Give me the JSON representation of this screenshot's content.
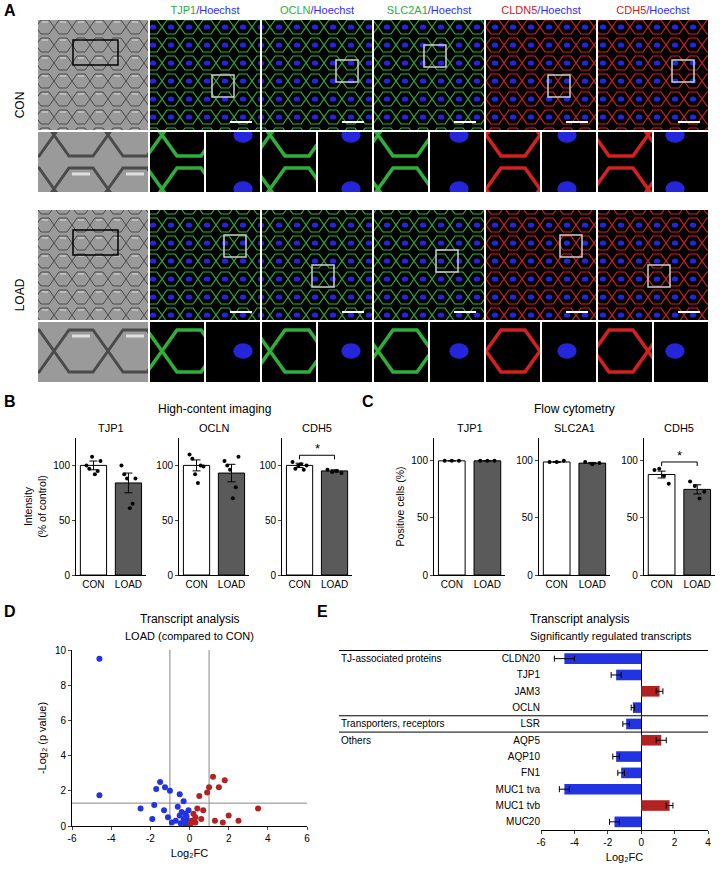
{
  "image_panel": {
    "letter": "A",
    "rows": [
      "CON",
      "LOAD"
    ],
    "nuclear_color": "#2b2bff",
    "columns": [
      {
        "type": "brightfield"
      },
      {
        "type": "fluorescence",
        "label": "TJP1/Hoechst",
        "color": "#2fae3a"
      },
      {
        "type": "fluorescence",
        "label": "OCLN/Hoechst",
        "color": "#2fae3a"
      },
      {
        "type": "fluorescence",
        "label": "SLC2A1/Hoechst",
        "color": "#2fae3a"
      },
      {
        "type": "fluorescence",
        "label": "CLDN5/Hoechst",
        "color": "#d42020"
      },
      {
        "type": "fluorescence",
        "label": "CDH5/Hoechst",
        "color": "#d42020"
      }
    ]
  },
  "chart_data": [
    {
      "letter": "B",
      "type": "bar",
      "title": "High-content imaging",
      "ylabel": [
        "Intensity",
        "(% of control)"
      ],
      "categories": [
        "CON",
        "LOAD"
      ],
      "colors": [
        "#ffffff",
        "#5a5a5a"
      ],
      "ylim": [
        0,
        125
      ],
      "yticks": [
        0,
        50,
        100
      ],
      "subplots": [
        {
          "title": "TJP1",
          "values": [
            100,
            84
          ],
          "errors": [
            4,
            9
          ],
          "points": [
            [
              100,
              97,
              108,
              92,
              95,
              104
            ],
            [
              100,
              92,
              88,
              61,
              65,
              88
            ]
          ]
        },
        {
          "title": "OCLN",
          "values": [
            100,
            93
          ],
          "errors": [
            5,
            8
          ],
          "points": [
            [
              110,
              106,
              92,
              84,
              100,
              99
            ],
            [
              104,
              100,
              96,
              70,
              80,
              108
            ]
          ]
        },
        {
          "title": "CDH5",
          "values": [
            100,
            95
          ],
          "errors": [
            2,
            1
          ],
          "points": [
            [
              103,
              97,
              100,
              101,
              96,
              100
            ],
            [
              96,
              94,
              95,
              93
            ]
          ],
          "significance": "*"
        }
      ]
    },
    {
      "letter": "C",
      "type": "bar",
      "title": "Flow cytometry",
      "ylabel": [
        "Positive cells (%)"
      ],
      "categories": [
        "CON",
        "LOAD"
      ],
      "colors": [
        "#ffffff",
        "#5a5a5a"
      ],
      "ylim": [
        0,
        120
      ],
      "yticks": [
        0,
        50,
        100
      ],
      "subplots": [
        {
          "title": "TJP1",
          "values": [
            100,
            100
          ],
          "errors": [
            0,
            0
          ],
          "points": [
            [
              100,
              100,
              100
            ],
            [
              100,
              100,
              100
            ]
          ]
        },
        {
          "title": "SLC2A1",
          "values": [
            99,
            98
          ],
          "errors": [
            0.3,
            0.6
          ],
          "points": [
            [
              99,
              99,
              100
            ],
            [
              99,
              97,
              98
            ]
          ]
        },
        {
          "title": "CDH5",
          "values": [
            88,
            75
          ],
          "errors": [
            3,
            4
          ],
          "points": [
            [
              92,
              93,
              87,
              80
            ],
            [
              82,
              78,
              67,
              73
            ]
          ],
          "significance": "*"
        }
      ]
    },
    {
      "letter": "D",
      "type": "scatter",
      "title": "Transcript analysis",
      "subtitle": "LOAD (compared to CON)",
      "xlabel": "Log₂FC",
      "ylabel": "-Log₂ (p value)",
      "xlim": [
        -6,
        6
      ],
      "xticks": [
        -6,
        -4,
        -2,
        0,
        2,
        4,
        6
      ],
      "ylim": [
        0,
        10
      ],
      "yticks": [
        0,
        2,
        4,
        6,
        8,
        10
      ],
      "vlines": [
        -1,
        1
      ],
      "hlines": [
        1.3
      ],
      "series": [
        {
          "color": "#2233e0",
          "x": [
            -4.6,
            -4.6,
            -1.5,
            -1.25,
            -1.7,
            -1.0,
            -0.5,
            -0.3,
            -1.8,
            -2.5,
            -1.3,
            -1.1,
            -0.7,
            -0.4,
            -0.5,
            -0.2,
            -0.3,
            -0.1,
            -0.6,
            -0.9,
            -0.2,
            -1.9,
            -0.15,
            -0.45,
            -0.05
          ],
          "y": [
            9.5,
            1.75,
            2.5,
            2.2,
            2.1,
            2.0,
            1.8,
            1.4,
            1.2,
            1.0,
            0.9,
            0.5,
            0.3,
            0.8,
            0.6,
            0.7,
            0.4,
            0.3,
            1.1,
            0.2,
            0.1,
            0.4,
            0.55,
            0.15,
            0.9
          ]
        },
        {
          "color": "#b32222",
          "x": [
            1.2,
            1.8,
            1.0,
            1.5,
            0.9,
            3.5,
            0.5,
            0.3,
            0.7,
            2.0,
            1.7,
            1.3,
            0.3,
            0.6,
            0.1,
            0.4,
            2.5,
            0.2,
            0.05
          ],
          "y": [
            2.8,
            2.6,
            2.2,
            2.2,
            1.9,
            1.0,
            1.7,
            0.5,
            0.9,
            0.6,
            0.2,
            0.3,
            0.2,
            0.4,
            0.3,
            1.0,
            0.3,
            0.7,
            0.1
          ]
        }
      ]
    },
    {
      "letter": "E",
      "type": "bar",
      "orientation": "horizontal",
      "title": "Transcript analysis",
      "subtitle": "Significantly regulated transcripts",
      "xlabel": "Log₂FC",
      "xlim": [
        -6,
        4
      ],
      "xticks": [
        -6,
        -4,
        -2,
        0,
        2,
        4
      ],
      "categories": [
        "CLDN20",
        "TJP1",
        "JAM3",
        "OCLN",
        "LSR",
        "AQP5",
        "AQP10",
        "FN1",
        "MUC1 tva",
        "MUC1 tvb",
        "MUC20"
      ],
      "values": [
        -4.6,
        -1.5,
        1.1,
        -0.5,
        -0.9,
        1.2,
        -1.5,
        -1.2,
        -4.6,
        1.7,
        -1.6
      ],
      "errors": [
        0.6,
        0.3,
        0.2,
        0.1,
        0.2,
        0.3,
        0.2,
        0.2,
        0.3,
        0.2,
        0.3
      ],
      "colors": [
        "#2233e0",
        "#2233e0",
        "#b32222",
        "#2233e0",
        "#2233e0",
        "#b32222",
        "#2233e0",
        "#2233e0",
        "#2233e0",
        "#b32222",
        "#2233e0"
      ],
      "groups": [
        {
          "label": "TJ-associated proteins",
          "categories": [
            "CLDN20",
            "TJP1",
            "JAM3",
            "OCLN"
          ]
        },
        {
          "label": "Transporters, receptors",
          "categories": [
            "LSR"
          ]
        },
        {
          "label": "Others",
          "categories": [
            "AQP5",
            "AQP10",
            "FN1",
            "MUC1 tva",
            "MUC1 tvb",
            "MUC20"
          ]
        }
      ]
    }
  ]
}
